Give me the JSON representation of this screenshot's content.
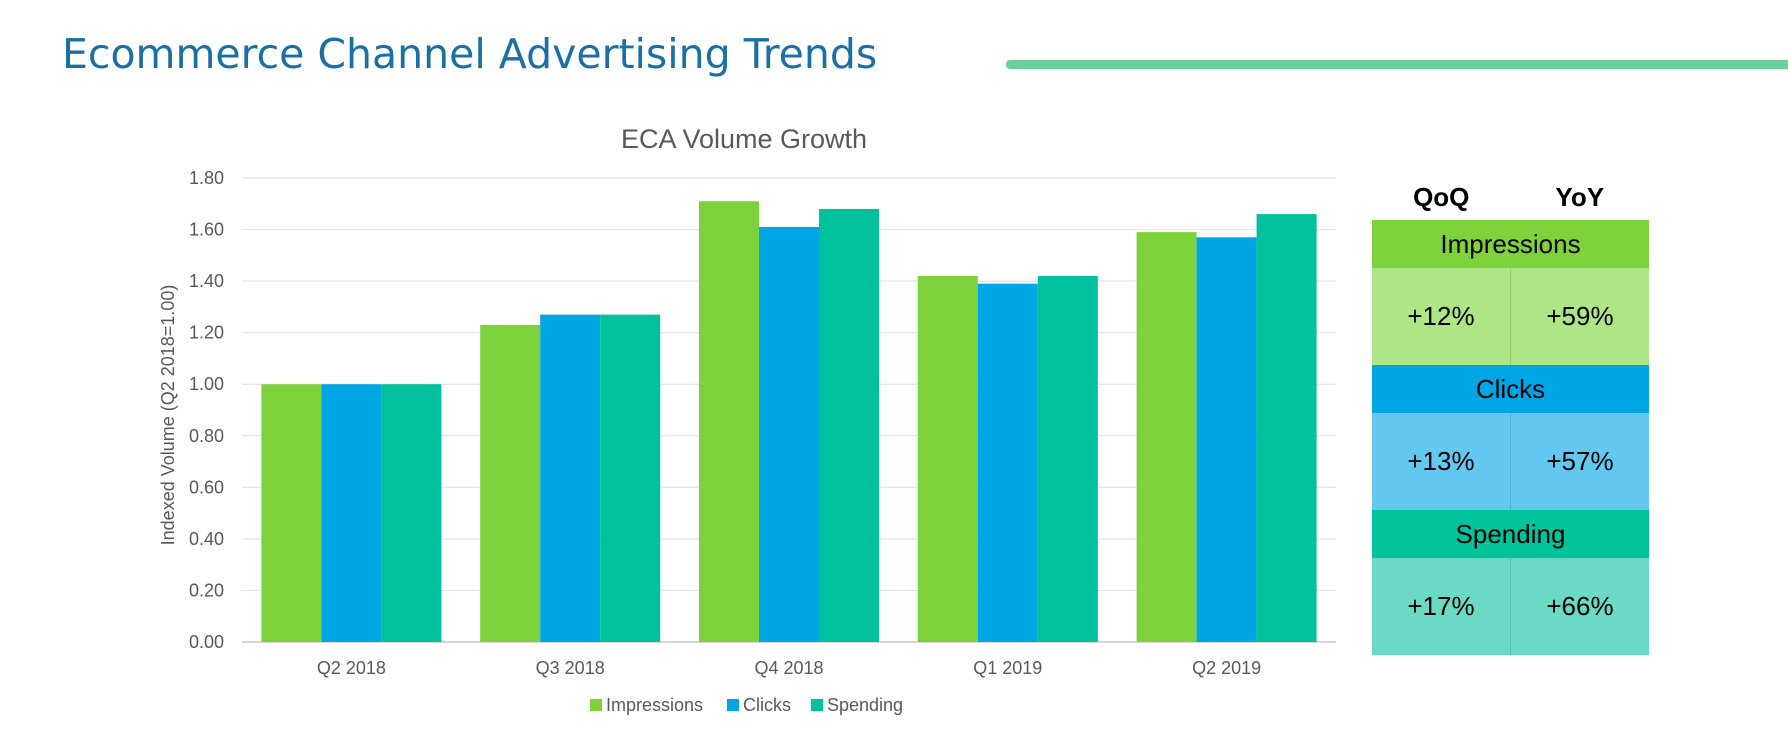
{
  "page": {
    "title": "Ecommerce Channel Advertising Trends"
  },
  "chart_data": {
    "type": "bar",
    "title": "ECA Volume Growth",
    "xlabel": "",
    "ylabel": "Indexed Volume (Q2 2018=1.00)",
    "ylim": [
      0,
      1.8
    ],
    "yticks": [
      "0.00",
      "0.20",
      "0.40",
      "0.60",
      "0.80",
      "1.00",
      "1.20",
      "1.40",
      "1.60",
      "1.80"
    ],
    "grid": true,
    "legend_position": "bottom",
    "categories": [
      "Q2 2018",
      "Q3 2018",
      "Q4 2018",
      "Q1 2019",
      "Q2 2019"
    ],
    "series": [
      {
        "name": "Impressions",
        "color": "#7dd13b",
        "values": [
          1.0,
          1.23,
          1.71,
          1.42,
          1.59
        ]
      },
      {
        "name": "Clicks",
        "color": "#00a5e3",
        "values": [
          1.0,
          1.27,
          1.61,
          1.39,
          1.57
        ]
      },
      {
        "name": "Spending",
        "color": "#00c19c",
        "values": [
          1.0,
          1.27,
          1.68,
          1.42,
          1.66
        ]
      }
    ]
  },
  "stats_table": {
    "col_headers": [
      "QoQ",
      "YoY"
    ],
    "rows": [
      {
        "name": "Impressions",
        "qoq": "+12%",
        "yoy": "+59%",
        "header_color": "#80d23c",
        "body_color": "#aee585"
      },
      {
        "name": "Clicks",
        "qoq": "+13%",
        "yoy": "+57%",
        "header_color": "#00a5e6",
        "body_color": "#62c8ef"
      },
      {
        "name": "Spending",
        "qoq": "+17%",
        "yoy": "+66%",
        "header_color": "#00c39c",
        "body_color": "#6adac4"
      }
    ]
  }
}
